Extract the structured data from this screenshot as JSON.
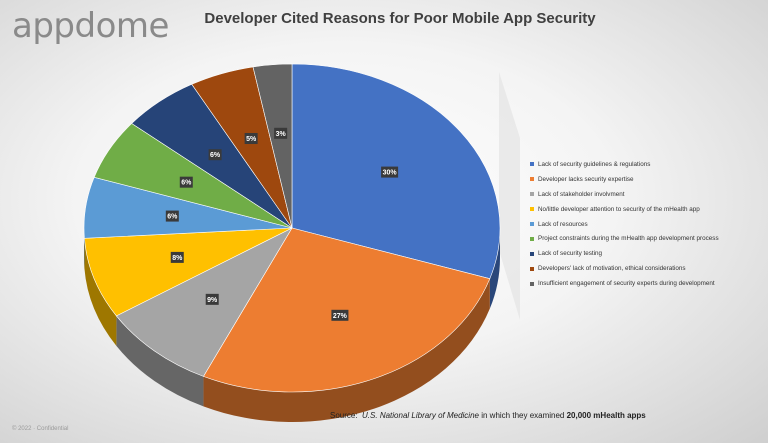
{
  "logo": "appdome",
  "footer": "© 2022 · Confidential",
  "source": {
    "prefix": "Source:",
    "publication": "U.S. National Library of Medicine",
    "middle": "in which they examined",
    "highlight": "20,000 mHealth apps"
  },
  "chart_data": {
    "type": "pie",
    "title": "Developer Cited Reasons for Poor Mobile App Security",
    "legend_position": "right",
    "slices": [
      {
        "label": "Lack of security guidelines & regulations",
        "value": 30,
        "display": "30%",
        "color": "#4472C4"
      },
      {
        "label": "Developer lacks security expertise",
        "value": 27,
        "display": "27%",
        "color": "#ED7D31"
      },
      {
        "label": "Lack of stakeholder involvment",
        "value": 9,
        "display": "9%",
        "color": "#A5A5A5"
      },
      {
        "label": "No/little developer attention to security of the mHealth app",
        "value": 8,
        "display": "8%",
        "color": "#FFC000"
      },
      {
        "label": "Lack of resources",
        "value": 6,
        "display": "6%",
        "color": "#5B9BD5"
      },
      {
        "label": "Project constraints during the mHealth app development process",
        "value": 6,
        "display": "6%",
        "color": "#70AD47"
      },
      {
        "label": "Lack of security testing",
        "value": 6,
        "display": "6%",
        "color": "#264478"
      },
      {
        "label": "Developers' lack of motivation, ethical considerations",
        "value": 5,
        "display": "5%",
        "color": "#9E480E"
      },
      {
        "label": "Insufficient engagement of security experts during development",
        "value": 3,
        "display": "3%",
        "color": "#636363"
      }
    ]
  }
}
